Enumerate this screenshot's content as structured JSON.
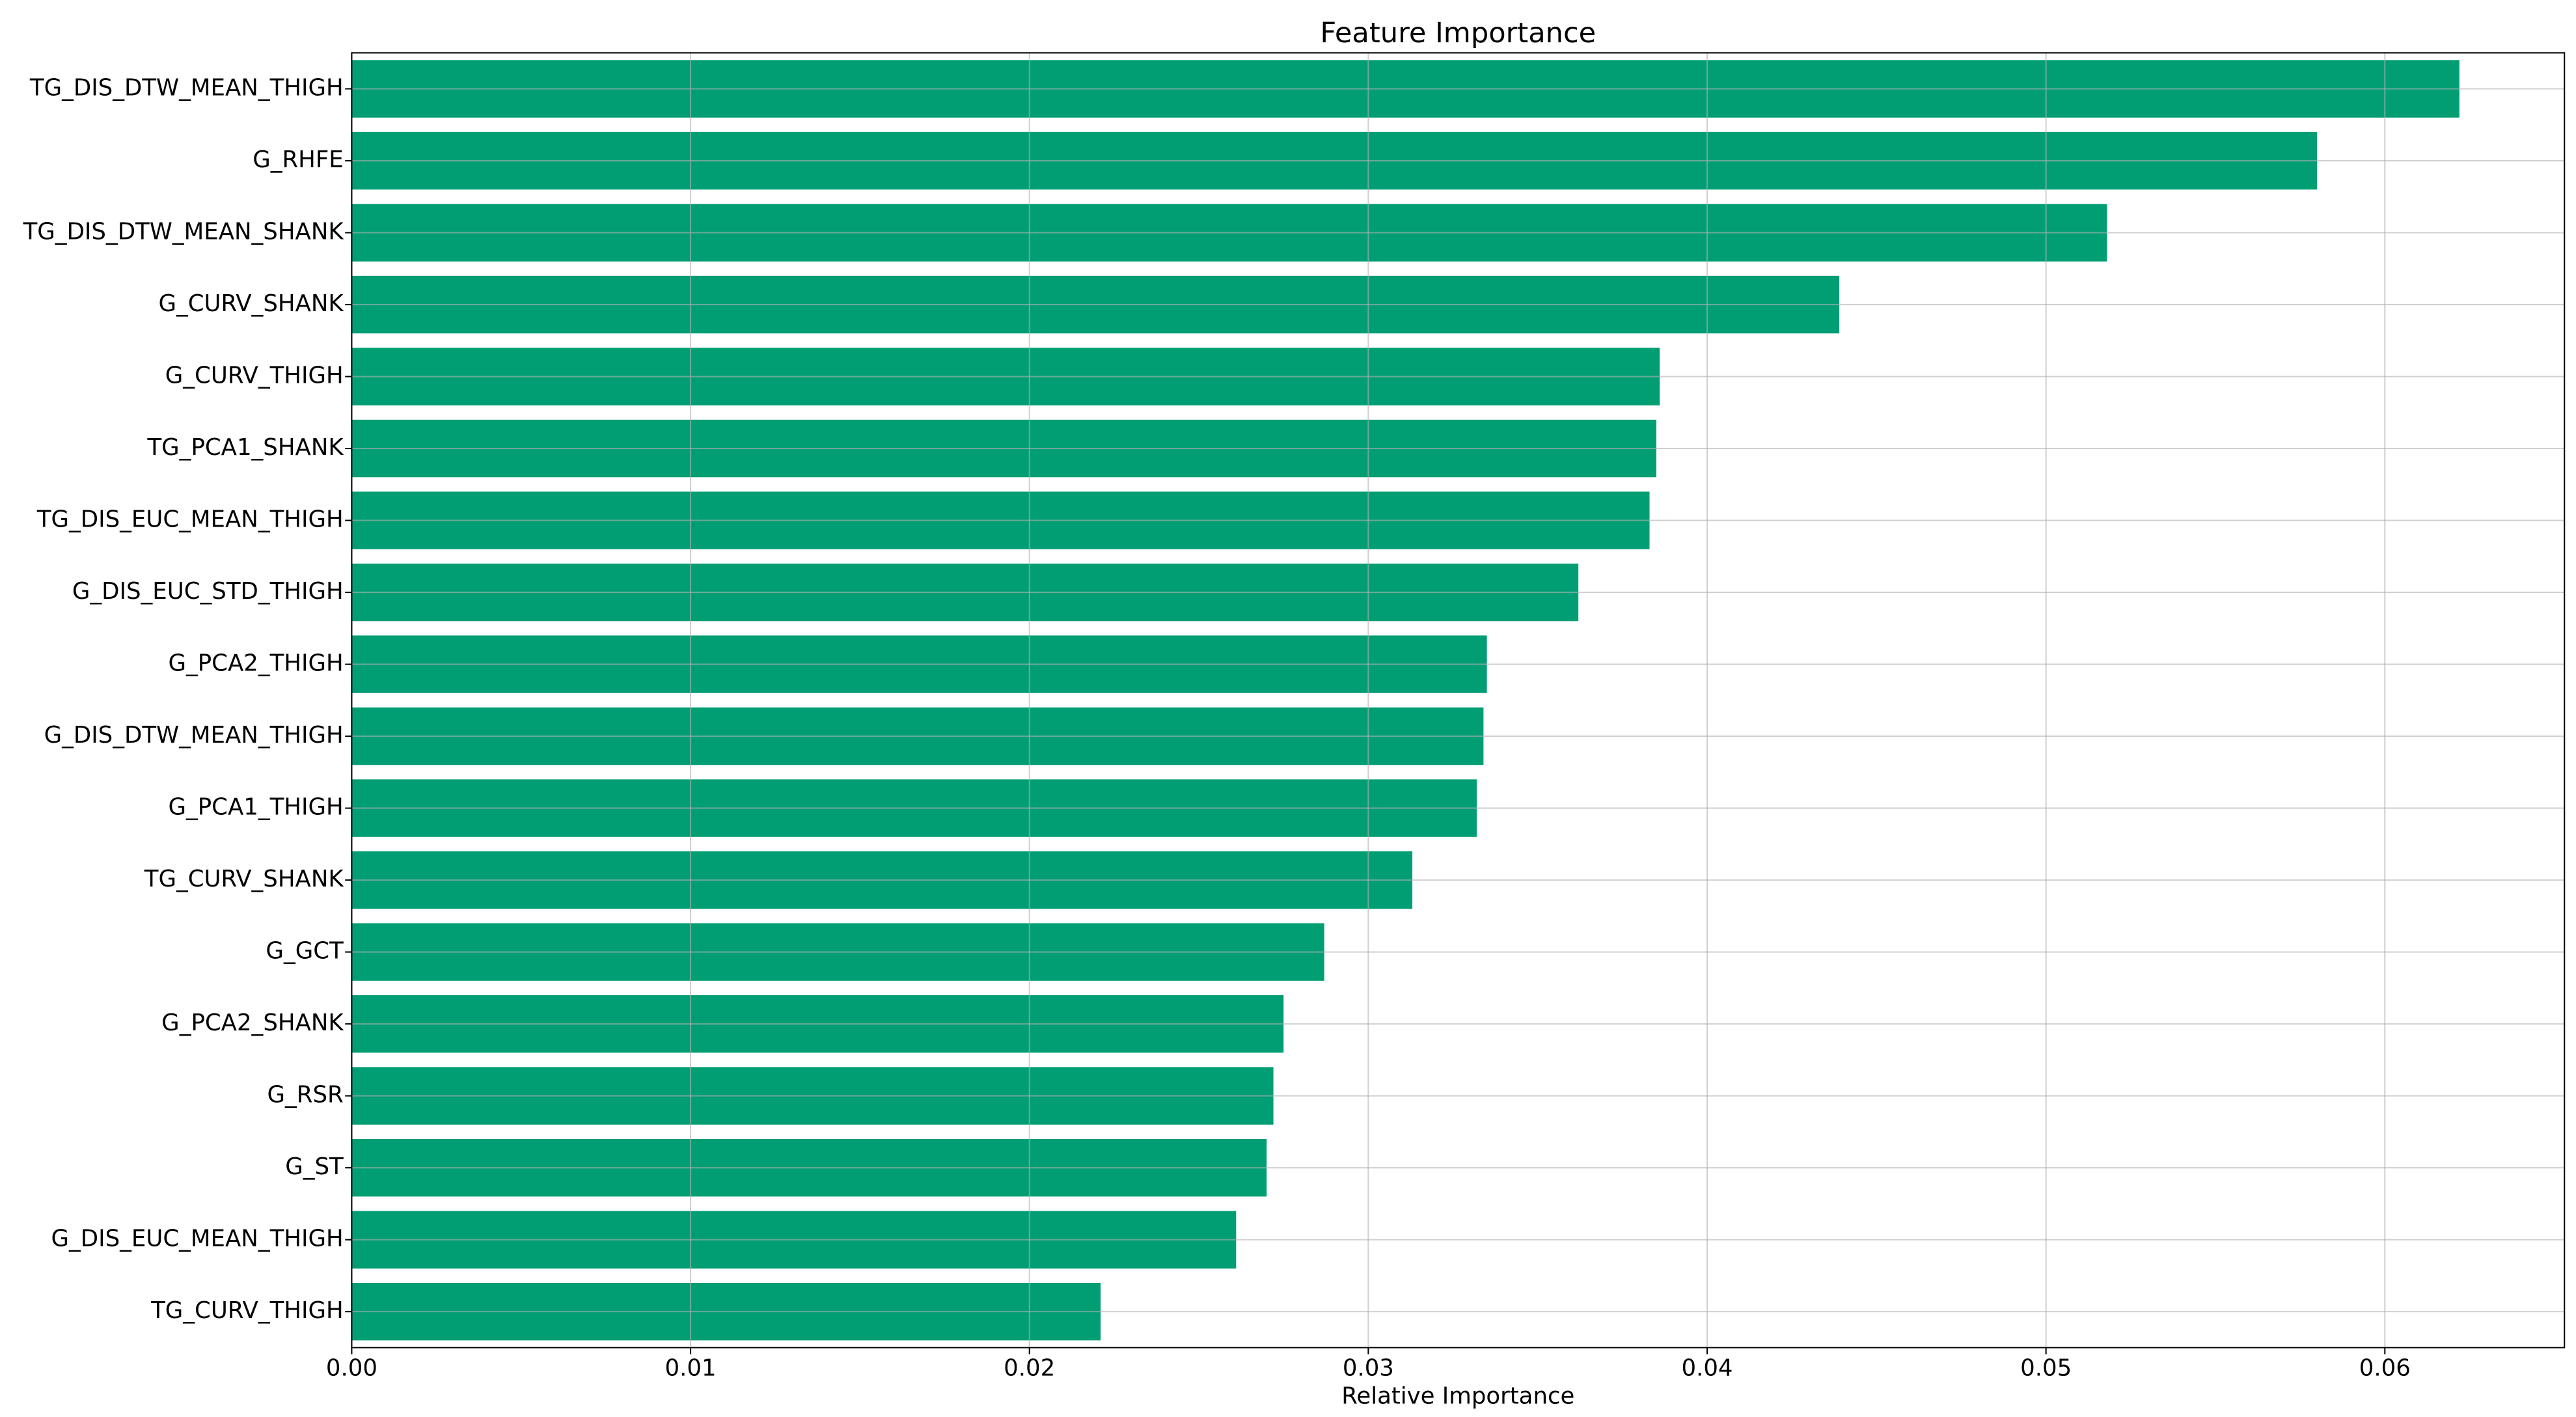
{
  "chart_data": {
    "type": "barh",
    "title": "Feature Importance",
    "xlabel": "Relative Importance",
    "categories": [
      "TG_DIS_DTW_MEAN_THIGH",
      "G_RHFE",
      "TG_DIS_DTW_MEAN_SHANK",
      "G_CURV_SHANK",
      "G_CURV_THIGH",
      "TG_PCA1_SHANK",
      "TG_DIS_EUC_MEAN_THIGH",
      "G_DIS_EUC_STD_THIGH",
      "G_PCA2_THIGH",
      "G_DIS_DTW_MEAN_THIGH",
      "G_PCA1_THIGH",
      "TG_CURV_SHANK",
      "G_GCT",
      "G_PCA2_SHANK",
      "G_RSR",
      "G_ST",
      "G_DIS_EUC_MEAN_THIGH",
      "TG_CURV_THIGH"
    ],
    "values": [
      0.0622,
      0.058,
      0.0518,
      0.0439,
      0.0386,
      0.0385,
      0.0383,
      0.0362,
      0.0335,
      0.0334,
      0.0332,
      0.0313,
      0.0287,
      0.0275,
      0.0272,
      0.027,
      0.0261,
      0.0221
    ],
    "color": "#029e73",
    "xlim": [
      0,
      0.0653
    ],
    "xticks": [
      {
        "value": 0,
        "label": "0.00"
      },
      0.01,
      0.02,
      0.03,
      0.04,
      0.05,
      0.06
    ],
    "grid": true
  }
}
